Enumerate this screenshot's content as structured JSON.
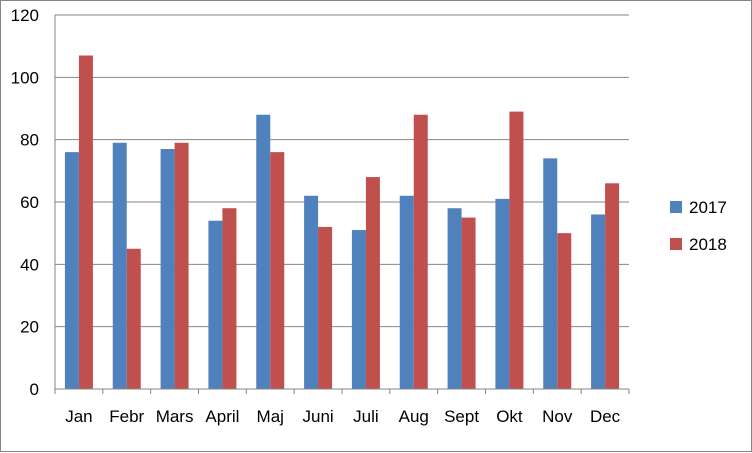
{
  "chart_data": {
    "type": "bar",
    "categories": [
      "Jan",
      "Febr",
      "Mars",
      "April",
      "Maj",
      "Juni",
      "Juli",
      "Aug",
      "Sept",
      "Okt",
      "Nov",
      "Dec"
    ],
    "series": [
      {
        "name": "2017",
        "color": "#4F81BD",
        "values": [
          76,
          79,
          77,
          54,
          88,
          62,
          51,
          62,
          58,
          61,
          74,
          56
        ]
      },
      {
        "name": "2018",
        "color": "#C0504D",
        "values": [
          107,
          45,
          79,
          58,
          76,
          52,
          68,
          88,
          55,
          89,
          50,
          66
        ]
      }
    ],
    "y_ticks": [
      "0",
      "20",
      "40",
      "60",
      "80",
      "100",
      "120"
    ],
    "ylim": [
      0,
      120
    ],
    "grid": true,
    "legend_position": "right"
  }
}
